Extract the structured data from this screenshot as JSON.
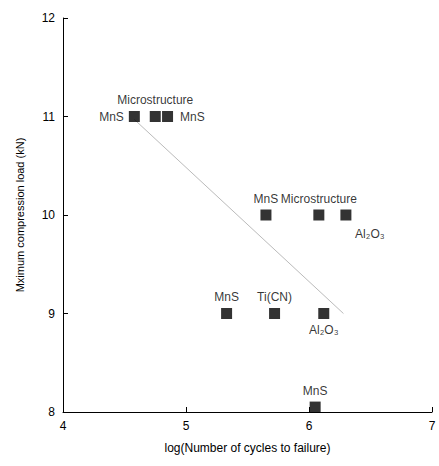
{
  "chart_data": {
    "type": "scatter",
    "x_label": "log(Number of cycles to failure)",
    "y_label": "Mximum compression load (kN)",
    "x": [
      4.58,
      4.75,
      4.85,
      5.65,
      6.08,
      6.3,
      5.33,
      5.72,
      6.12,
      6.05
    ],
    "values": [
      11,
      11,
      11,
      10,
      10,
      10,
      9,
      9,
      9,
      8.05
    ],
    "labels": [
      "MnS",
      "Microstructure",
      "MnS",
      "MnS",
      "Microstructure",
      "Al₂O₃",
      "MnS",
      "Ti(CN)",
      "Al₂O₃",
      "MnS"
    ],
    "color": "#000000",
    "marker": "square",
    "xlim": [
      4,
      7
    ],
    "xticks": [
      4,
      5,
      6,
      7
    ],
    "ylim": [
      8,
      12
    ],
    "yticks": [
      8,
      9,
      10,
      11,
      12
    ],
    "grid": false,
    "trend_line": {
      "x": [
        4.58,
        6.28
      ],
      "values": [
        10.97,
        9.0
      ],
      "color": "#bbbbbb"
    }
  }
}
